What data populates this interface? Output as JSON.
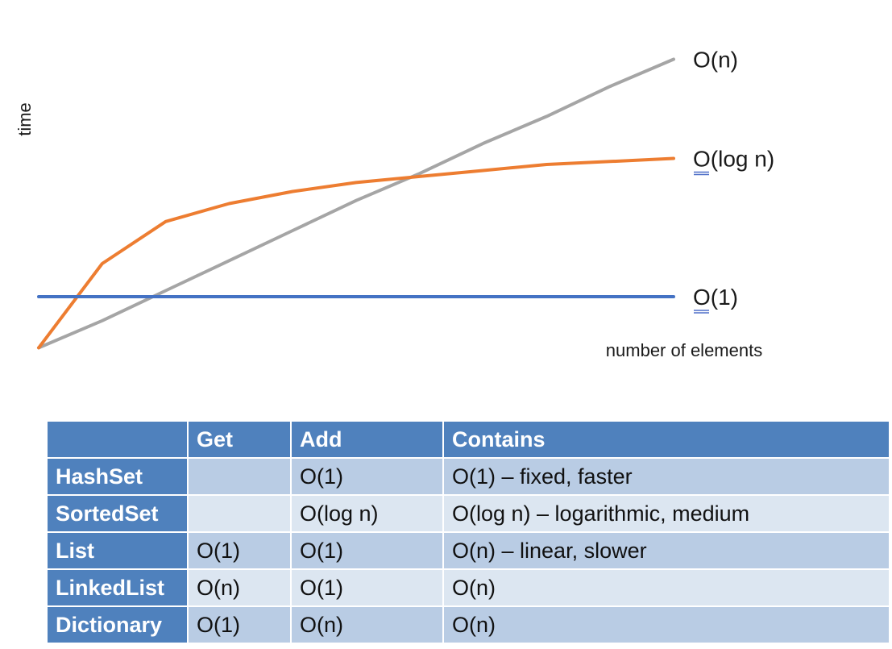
{
  "chart_data": {
    "type": "line",
    "title": "",
    "xlabel": "number of elements",
    "ylabel": "time",
    "x": [
      0,
      1,
      2,
      3,
      4,
      5,
      6,
      7,
      8,
      9,
      10
    ],
    "series": [
      {
        "name": "O(n)",
        "color": "#a5a5a5",
        "values": [
          0.5,
          1.4,
          2.4,
          3.4,
          4.4,
          5.4,
          6.3,
          7.3,
          8.2,
          9.2,
          10.1
        ]
      },
      {
        "name": "O(log n)",
        "color": "#ed7d31",
        "values": [
          0.5,
          3.3,
          4.7,
          5.3,
          5.7,
          6.0,
          6.2,
          6.4,
          6.6,
          6.7,
          6.8
        ]
      },
      {
        "name": "O(1)",
        "color": "#4472c4",
        "values": [
          2.2,
          2.2,
          2.2,
          2.2,
          2.2,
          2.2,
          2.2,
          2.2,
          2.2,
          2.2,
          2.2
        ]
      }
    ],
    "ylim": [
      0,
      11
    ],
    "xlim": [
      0,
      10
    ],
    "grid": false,
    "legend": "labels at right end of lines"
  },
  "table": {
    "headers": [
      "",
      "Get",
      "Add",
      "Contains"
    ],
    "rows": [
      {
        "name": "HashSet",
        "get": "",
        "add": "O(1)",
        "contains": "O(1) – fixed, faster"
      },
      {
        "name": "SortedSet",
        "get": "",
        "add": "O(log n)",
        "contains": "O(log n) – logarithmic, medium"
      },
      {
        "name": "List",
        "get": "O(1)",
        "add": "O(1)",
        "contains": "O(n) – linear, slower"
      },
      {
        "name": "LinkedList",
        "get": "O(n)",
        "add": "O(1)",
        "contains": "O(n)"
      },
      {
        "name": "Dictionary",
        "get": "O(1)",
        "add": "O(n)",
        "contains": "O(n)"
      }
    ]
  }
}
